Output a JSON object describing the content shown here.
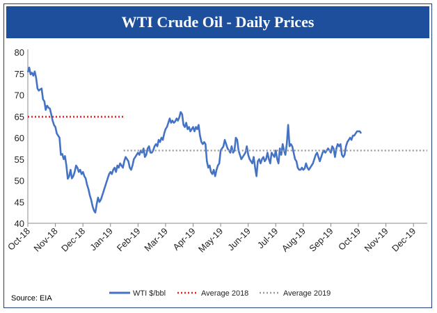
{
  "chart_data": {
    "type": "line",
    "title": "WTI Crude Oil - Daily Prices",
    "source": "Source:  EIA",
    "ylim": [
      40,
      80
    ],
    "yticks": [
      40,
      45,
      50,
      55,
      60,
      65,
      70,
      75,
      80
    ],
    "x_range": [
      0,
      14.5
    ],
    "categories": [
      "Oct-18",
      "Nov-18",
      "Dec-18",
      "Jan-19",
      "Feb-19",
      "Mar-19",
      "Apr-19",
      "May-19",
      "Jun-19",
      "Jul-19",
      "Aug-19",
      "Sep-19",
      "Oct-19",
      "Nov-19",
      "Dec-19"
    ],
    "series": [
      {
        "name": "WTI $/bbl",
        "color": "#4472c4",
        "points": [
          [
            0.0,
            75.3
          ],
          [
            0.05,
            76.4
          ],
          [
            0.1,
            74.8
          ],
          [
            0.15,
            75.2
          ],
          [
            0.2,
            74.5
          ],
          [
            0.25,
            75.5
          ],
          [
            0.3,
            74.0
          ],
          [
            0.35,
            71.5
          ],
          [
            0.4,
            71.0
          ],
          [
            0.45,
            71.3
          ],
          [
            0.5,
            71.5
          ],
          [
            0.55,
            69.0
          ],
          [
            0.6,
            68.5
          ],
          [
            0.65,
            66.5
          ],
          [
            0.7,
            67.5
          ],
          [
            0.75,
            67.0
          ],
          [
            0.8,
            66.8
          ],
          [
            0.85,
            65.5
          ],
          [
            0.9,
            64.0
          ],
          [
            0.95,
            63.0
          ],
          [
            1.0,
            62.5
          ],
          [
            1.05,
            61.0
          ],
          [
            1.1,
            60.5
          ],
          [
            1.15,
            60.0
          ],
          [
            1.2,
            56.0
          ],
          [
            1.25,
            56.2
          ],
          [
            1.3,
            55.0
          ],
          [
            1.35,
            55.7
          ],
          [
            1.4,
            53.5
          ],
          [
            1.45,
            50.4
          ],
          [
            1.5,
            51.0
          ],
          [
            1.55,
            52.5
          ],
          [
            1.6,
            50.5
          ],
          [
            1.65,
            51.0
          ],
          [
            1.7,
            52.0
          ],
          [
            1.75,
            53.5
          ],
          [
            1.8,
            53.0
          ],
          [
            1.85,
            52.0
          ],
          [
            1.9,
            52.5
          ],
          [
            1.95,
            51.5
          ],
          [
            2.0,
            52.0
          ],
          [
            2.05,
            51.0
          ],
          [
            2.1,
            50.5
          ],
          [
            2.15,
            49.0
          ],
          [
            2.2,
            48.0
          ],
          [
            2.25,
            46.5
          ],
          [
            2.3,
            45.5
          ],
          [
            2.35,
            44.0
          ],
          [
            2.4,
            43.0
          ],
          [
            2.45,
            42.5
          ],
          [
            2.5,
            44.5
          ],
          [
            2.55,
            46.0
          ],
          [
            2.6,
            45.0
          ],
          [
            2.65,
            45.5
          ],
          [
            2.7,
            46.5
          ],
          [
            2.75,
            47.5
          ],
          [
            2.8,
            48.5
          ],
          [
            2.85,
            49.5
          ],
          [
            2.9,
            50.5
          ],
          [
            2.95,
            51.5
          ],
          [
            3.0,
            52.0
          ],
          [
            3.05,
            51.5
          ],
          [
            3.1,
            52.5
          ],
          [
            3.15,
            53.0
          ],
          [
            3.2,
            52.0
          ],
          [
            3.25,
            53.5
          ],
          [
            3.3,
            53.0
          ],
          [
            3.35,
            54.0
          ],
          [
            3.4,
            53.5
          ],
          [
            3.45,
            53.0
          ],
          [
            3.5,
            54.5
          ],
          [
            3.55,
            55.5
          ],
          [
            3.6,
            55.0
          ],
          [
            3.65,
            54.5
          ],
          [
            3.7,
            53.0
          ],
          [
            3.75,
            52.5
          ],
          [
            3.8,
            53.5
          ],
          [
            3.85,
            55.0
          ],
          [
            3.9,
            55.5
          ],
          [
            3.95,
            56.0
          ],
          [
            4.0,
            56.5
          ],
          [
            4.05,
            56.0
          ],
          [
            4.1,
            57.0
          ],
          [
            4.15,
            56.5
          ],
          [
            4.2,
            57.5
          ],
          [
            4.25,
            55.5
          ],
          [
            4.3,
            56.0
          ],
          [
            4.35,
            57.5
          ],
          [
            4.4,
            58.0
          ],
          [
            4.45,
            56.5
          ],
          [
            4.5,
            56.5
          ],
          [
            4.55,
            57.0
          ],
          [
            4.6,
            58.0
          ],
          [
            4.65,
            58.5
          ],
          [
            4.7,
            58.0
          ],
          [
            4.75,
            59.5
          ],
          [
            4.8,
            59.0
          ],
          [
            4.85,
            60.0
          ],
          [
            4.9,
            59.5
          ],
          [
            4.95,
            61.0
          ],
          [
            5.0,
            62.0
          ],
          [
            5.05,
            62.5
          ],
          [
            5.1,
            63.5
          ],
          [
            5.15,
            64.5
          ],
          [
            5.2,
            63.5
          ],
          [
            5.25,
            64.0
          ],
          [
            5.3,
            63.5
          ],
          [
            5.35,
            63.8
          ],
          [
            5.4,
            64.5
          ],
          [
            5.45,
            64.0
          ],
          [
            5.5,
            64.8
          ],
          [
            5.55,
            66.0
          ],
          [
            5.6,
            65.5
          ],
          [
            5.65,
            63.0
          ],
          [
            5.7,
            62.5
          ],
          [
            5.75,
            63.5
          ],
          [
            5.8,
            62.0
          ],
          [
            5.85,
            62.5
          ],
          [
            5.9,
            61.5
          ],
          [
            5.95,
            62.0
          ],
          [
            6.0,
            62.5
          ],
          [
            6.05,
            61.5
          ],
          [
            6.1,
            62.5
          ],
          [
            6.15,
            62.0
          ],
          [
            6.2,
            63.0
          ],
          [
            6.25,
            60.5
          ],
          [
            6.3,
            59.0
          ],
          [
            6.35,
            58.5
          ],
          [
            6.4,
            59.0
          ],
          [
            6.45,
            58.5
          ],
          [
            6.5,
            54.5
          ],
          [
            6.55,
            53.0
          ],
          [
            6.6,
            53.5
          ],
          [
            6.65,
            52.0
          ],
          [
            6.7,
            51.5
          ],
          [
            6.75,
            52.5
          ],
          [
            6.8,
            51.0
          ],
          [
            6.85,
            52.5
          ],
          [
            6.9,
            53.5
          ],
          [
            6.95,
            54.0
          ],
          [
            7.0,
            57.0
          ],
          [
            7.05,
            57.5
          ],
          [
            7.1,
            58.0
          ],
          [
            7.15,
            59.5
          ],
          [
            7.2,
            58.5
          ],
          [
            7.25,
            57.5
          ],
          [
            7.3,
            57.0
          ],
          [
            7.35,
            56.5
          ],
          [
            7.4,
            58.0
          ],
          [
            7.45,
            56.5
          ],
          [
            7.5,
            57.0
          ],
          [
            7.55,
            60.0
          ],
          [
            7.6,
            59.5
          ],
          [
            7.65,
            57.0
          ],
          [
            7.7,
            56.0
          ],
          [
            7.75,
            55.0
          ],
          [
            7.8,
            55.5
          ],
          [
            7.85,
            56.0
          ],
          [
            7.9,
            56.5
          ],
          [
            7.95,
            58.0
          ],
          [
            8.0,
            56.0
          ],
          [
            8.05,
            55.0
          ],
          [
            8.1,
            54.5
          ],
          [
            8.15,
            54.0
          ],
          [
            8.2,
            55.5
          ],
          [
            8.25,
            53.0
          ],
          [
            8.3,
            51.0
          ],
          [
            8.35,
            54.5
          ],
          [
            8.4,
            55.0
          ],
          [
            8.45,
            54.0
          ],
          [
            8.5,
            55.0
          ],
          [
            8.55,
            55.5
          ],
          [
            8.6,
            54.5
          ],
          [
            8.65,
            55.0
          ],
          [
            8.7,
            56.5
          ],
          [
            8.75,
            55.0
          ],
          [
            8.8,
            54.0
          ],
          [
            8.85,
            56.5
          ],
          [
            8.9,
            56.0
          ],
          [
            8.95,
            55.5
          ],
          [
            9.0,
            57.0
          ],
          [
            9.05,
            55.0
          ],
          [
            9.1,
            54.0
          ],
          [
            9.15,
            57.5
          ],
          [
            9.2,
            56.0
          ],
          [
            9.25,
            58.5
          ],
          [
            9.3,
            57.0
          ],
          [
            9.35,
            56.0
          ],
          [
            9.4,
            58.5
          ],
          [
            9.45,
            63.0
          ],
          [
            9.5,
            58.0
          ],
          [
            9.55,
            58.5
          ],
          [
            9.6,
            58.0
          ],
          [
            9.65,
            56.5
          ],
          [
            9.7,
            55.0
          ],
          [
            9.75,
            54.5
          ],
          [
            9.8,
            53.0
          ],
          [
            9.85,
            52.5
          ],
          [
            9.9,
            52.5
          ],
          [
            9.95,
            53.0
          ],
          [
            10.0,
            52.5
          ],
          [
            10.05,
            52.8
          ],
          [
            10.1,
            54.0
          ],
          [
            10.15,
            53.0
          ],
          [
            10.2,
            52.5
          ],
          [
            10.25,
            53.0
          ],
          [
            10.3,
            53.5
          ],
          [
            10.35,
            54.0
          ],
          [
            10.4,
            55.0
          ],
          [
            10.45,
            56.0
          ],
          [
            10.5,
            56.5
          ],
          [
            10.55,
            55.5
          ],
          [
            10.6,
            54.5
          ],
          [
            10.65,
            55.5
          ],
          [
            10.7,
            56.5
          ],
          [
            10.75,
            57.0
          ],
          [
            10.8,
            56.5
          ],
          [
            10.85,
            57.0
          ],
          [
            10.9,
            57.5
          ],
          [
            10.95,
            57.0
          ],
          [
            11.0,
            56.5
          ],
          [
            11.05,
            58.0
          ],
          [
            11.1,
            57.5
          ],
          [
            11.15,
            55.5
          ],
          [
            11.2,
            57.5
          ],
          [
            11.25,
            58.5
          ],
          [
            11.3,
            58.0
          ],
          [
            11.35,
            58.5
          ],
          [
            11.4,
            56.0
          ],
          [
            11.45,
            55.5
          ],
          [
            11.5,
            56.0
          ],
          [
            11.55,
            58.0
          ],
          [
            11.6,
            59.0
          ],
          [
            11.65,
            59.5
          ],
          [
            11.7,
            60.0
          ],
          [
            11.75,
            59.5
          ],
          [
            11.8,
            60.5
          ],
          [
            11.85,
            60.5
          ],
          [
            11.9,
            61.0
          ],
          [
            11.95,
            61.5
          ],
          [
            12.0,
            61.5
          ],
          [
            12.05,
            61.5
          ],
          [
            12.1,
            61.0
          ]
        ]
      },
      {
        "name": "Average 2018",
        "color": "#e01f1f",
        "y": 64.9,
        "x_start": 0.0,
        "x_end": 3.48
      },
      {
        "name": "Average 2019",
        "color": "#9a9a9a",
        "y": 57.0,
        "x_start": 3.48,
        "x_end": 14.5
      }
    ],
    "legend": [
      "WTI $/bbl",
      "Average 2018",
      "Average 2019"
    ]
  }
}
